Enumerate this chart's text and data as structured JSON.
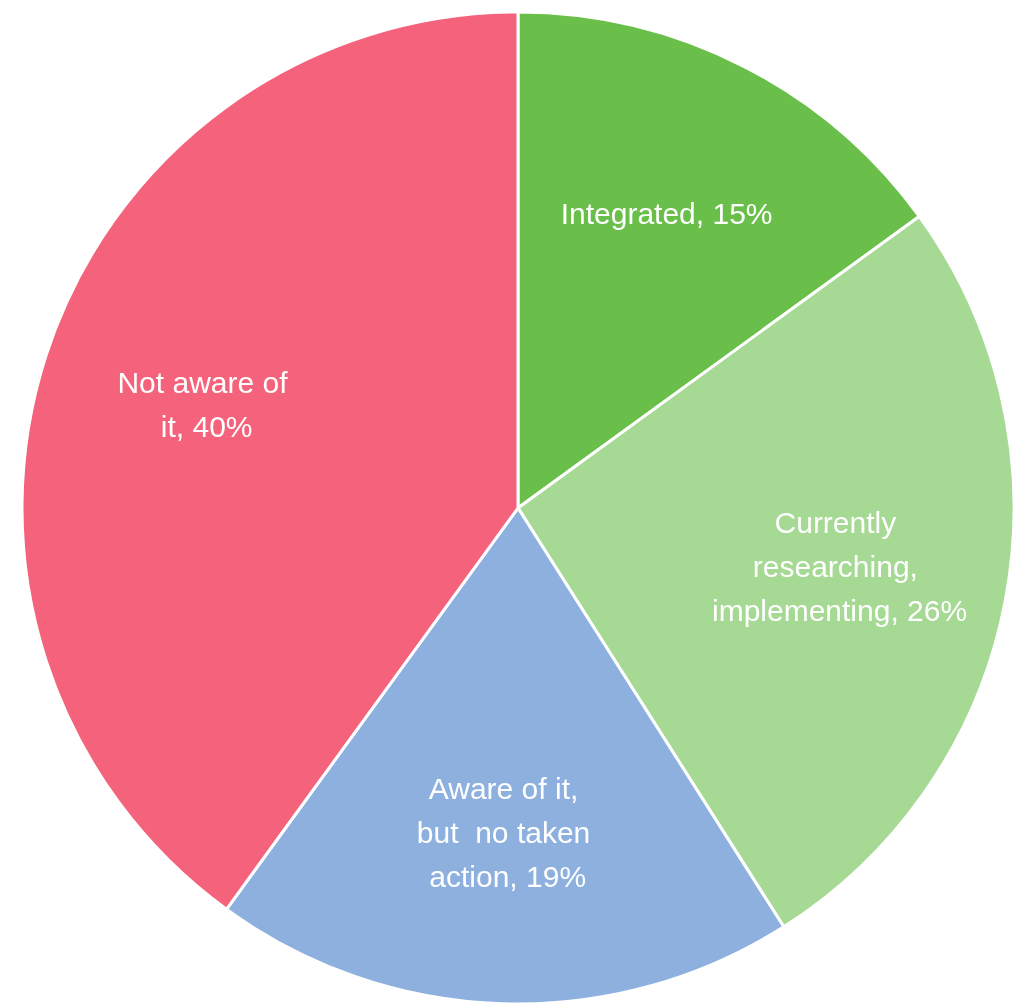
{
  "chart_data": {
    "type": "pie",
    "categories": [
      "Integrated",
      "Currently researching, implementing",
      "Aware of it, but  no taken action",
      "Not aware of it"
    ],
    "values": [
      15,
      26,
      19,
      40
    ],
    "colors": [
      "#6abf4b",
      "#a6d994",
      "#8db0df",
      "#f4637b"
    ],
    "value_labels": [
      "15%",
      "26%",
      "19%",
      "40%"
    ],
    "legend": false
  }
}
